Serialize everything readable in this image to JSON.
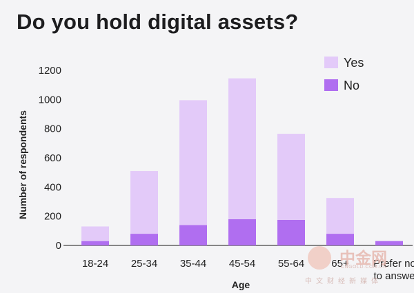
{
  "title": "Do you hold digital assets?",
  "watermark": {
    "cn": "中金网",
    "en": "CNGOLD.COM.CN",
    "sub": "中文财经新媒体"
  },
  "chart_data": {
    "type": "bar",
    "stacked": true,
    "categories": [
      "18-24",
      "25-34",
      "35-44",
      "45-54",
      "55-64",
      "65+",
      "Prefer not to answer"
    ],
    "series": [
      {
        "name": "No",
        "color": "#b06ef0",
        "values": [
          30,
          80,
          140,
          180,
          175,
          80,
          30
        ]
      },
      {
        "name": "Yes",
        "color": "#e3caf9",
        "values": [
          100,
          430,
          855,
          965,
          590,
          245,
          0
        ]
      }
    ],
    "xlabel": "Age",
    "ylabel": "Number of respondents",
    "ylim": [
      0,
      1200
    ],
    "yticks": [
      0,
      200,
      400,
      600,
      800,
      1000,
      1200
    ],
    "grid": false,
    "legend": "top-right"
  }
}
